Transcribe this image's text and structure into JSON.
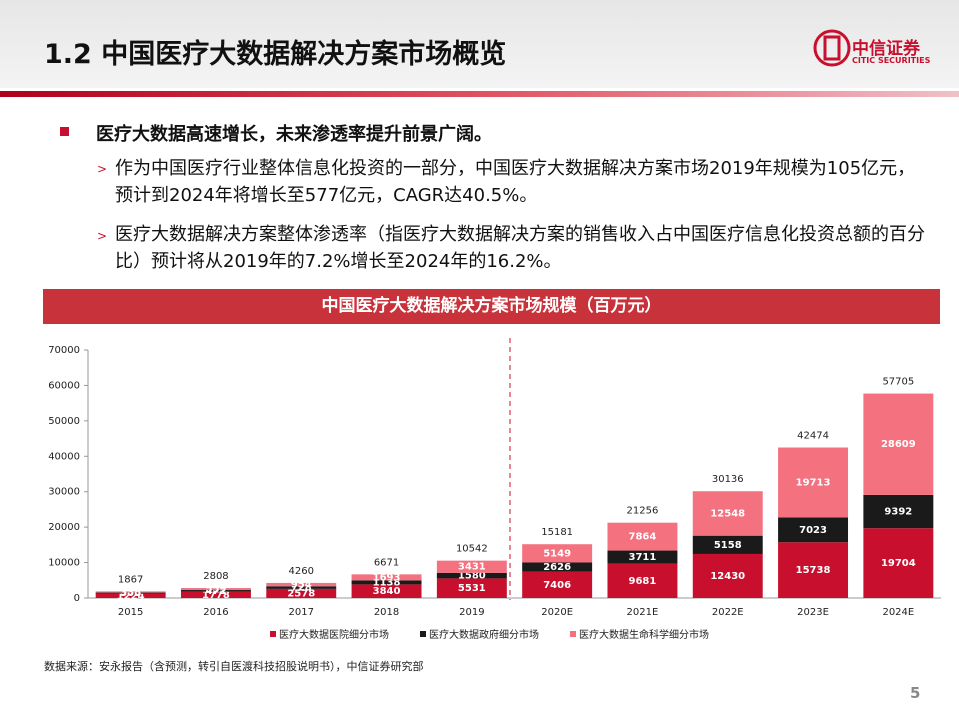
{
  "header": {
    "title": "1.2 中国医疗大数据解决方案市场概览",
    "logo_cn": "中信证券",
    "logo_en": "CITIC SECURITIES"
  },
  "bullets": {
    "main": "医疗大数据高速增长，未来渗透率提升前景广阔。",
    "subs": [
      "作为中国医疗行业整体信息化投资的一部分，中国医疗大数据解决方案市场2019年规模为105亿元，预计到2024年将增长至577亿元，CAGR达40.5%。",
      "医疗大数据解决方案整体渗透率（指医疗大数据解决方案的销售收入占中国医疗信息化投资总额的百分比）预计将从2019年的7.2%增长至2024年的16.2%。"
    ]
  },
  "chart_data": {
    "type": "stacked_bar",
    "title": "中国医疗大数据解决方案市场规模（百万元）",
    "categories": [
      "2015",
      "2016",
      "2017",
      "2018",
      "2019",
      "2020E",
      "2021E",
      "2022E",
      "2023E",
      "2024E"
    ],
    "series": [
      {
        "name": "医疗大数据医院细分市场",
        "color": "#c8102e",
        "values": [
          1224,
          1778,
          2578,
          3840,
          5531,
          7406,
          9681,
          12430,
          15738,
          19704
        ]
      },
      {
        "name": "医疗大数据政府细分市场",
        "color": "#1a1a1a",
        "values": [
          305,
          471,
          728,
          1138,
          1580,
          2626,
          3711,
          5158,
          7023,
          9392
        ]
      },
      {
        "name": "医疗大数据生命科学细分市场",
        "color": "#f4717f",
        "values": [
          338,
          559,
          954,
          1693,
          3431,
          5149,
          7864,
          12548,
          19713,
          28609
        ]
      }
    ],
    "totals": [
      1867,
      2808,
      4260,
      6671,
      10542,
      15181,
      21256,
      30136,
      42474,
      57705
    ],
    "ylim": [
      0,
      70000
    ],
    "yticks": [
      0,
      10000,
      20000,
      30000,
      40000,
      50000,
      60000,
      70000
    ]
  },
  "source": "数据来源：安永报告（含预测，转引自医渡科技招股说明书），中信证券研究部",
  "page_number": "5"
}
